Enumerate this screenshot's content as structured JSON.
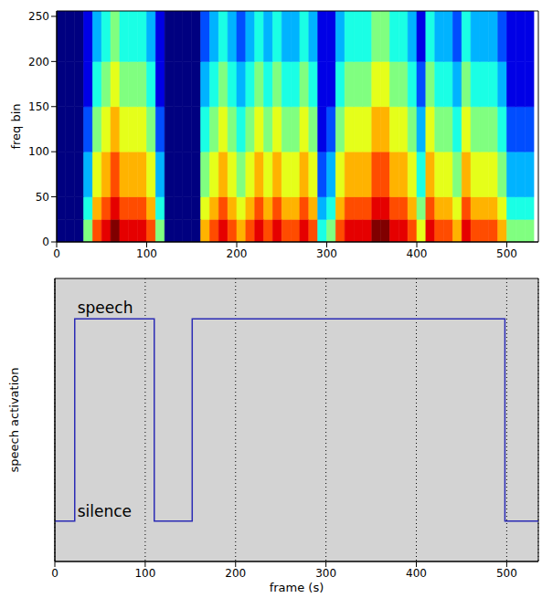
{
  "chart_data": [
    {
      "type": "heatmap",
      "y_label": "freq bin",
      "xlim": [
        0,
        535
      ],
      "xticks": [
        0,
        100,
        200,
        300,
        400,
        500
      ],
      "ylim": [
        0,
        256
      ],
      "yticks": [
        0,
        50,
        100,
        150,
        200,
        250
      ],
      "frame_edges": [
        0,
        10,
        20,
        30,
        40,
        50,
        60,
        70,
        80,
        90,
        100,
        110,
        120,
        130,
        140,
        150,
        160,
        170,
        180,
        190,
        200,
        210,
        220,
        230,
        240,
        250,
        260,
        270,
        280,
        290,
        300,
        310,
        320,
        330,
        340,
        350,
        360,
        370,
        380,
        390,
        400,
        410,
        420,
        430,
        440,
        450,
        460,
        470,
        480,
        490,
        500,
        510,
        520,
        530
      ],
      "freq_edges": [
        0,
        25,
        50,
        100,
        150,
        200,
        256
      ],
      "zlim": [
        0,
        10
      ],
      "cells": [
        [
          0,
          0,
          0,
          5,
          8,
          9,
          10,
          9,
          9,
          9,
          8,
          5,
          0,
          0,
          0,
          0,
          7,
          8,
          9,
          8,
          7,
          8,
          9,
          8,
          9,
          8,
          8,
          9,
          8,
          4,
          5,
          8,
          9,
          9,
          9,
          10,
          10,
          9,
          9,
          8,
          6,
          9,
          8,
          8,
          7,
          9,
          8,
          8,
          8,
          7,
          5,
          5,
          5
        ],
        [
          0,
          0,
          0,
          4,
          7,
          8,
          9,
          8,
          8,
          8,
          7,
          4,
          0,
          0,
          0,
          0,
          6,
          7,
          8,
          7,
          6,
          7,
          8,
          7,
          8,
          7,
          7,
          8,
          7,
          3,
          4,
          7,
          8,
          8,
          8,
          9,
          9,
          8,
          8,
          7,
          5,
          8,
          7,
          7,
          6,
          8,
          7,
          7,
          7,
          6,
          4,
          4,
          4
        ],
        [
          0,
          0,
          0,
          3,
          6,
          7,
          8,
          7,
          7,
          7,
          6,
          3,
          0,
          0,
          0,
          0,
          5,
          6,
          7,
          6,
          5,
          6,
          7,
          6,
          7,
          6,
          6,
          7,
          6,
          2,
          3,
          6,
          7,
          7,
          7,
          8,
          8,
          7,
          7,
          6,
          4,
          7,
          6,
          6,
          5,
          7,
          6,
          6,
          6,
          5,
          3,
          3,
          3
        ],
        [
          0,
          0,
          0,
          2,
          5,
          6,
          7,
          6,
          6,
          6,
          5,
          2,
          0,
          0,
          0,
          0,
          4,
          5,
          6,
          5,
          4,
          5,
          6,
          5,
          6,
          5,
          5,
          6,
          5,
          1,
          2,
          5,
          6,
          6,
          6,
          7,
          7,
          6,
          6,
          5,
          3,
          6,
          5,
          5,
          4,
          6,
          5,
          5,
          5,
          4,
          2,
          2,
          2
        ],
        [
          0,
          0,
          0,
          1,
          4,
          5,
          6,
          5,
          5,
          5,
          4,
          1,
          0,
          0,
          0,
          0,
          3,
          4,
          5,
          4,
          3,
          4,
          5,
          4,
          5,
          4,
          4,
          5,
          4,
          1,
          1,
          4,
          5,
          5,
          5,
          6,
          6,
          5,
          5,
          4,
          2,
          5,
          4,
          4,
          3,
          5,
          4,
          4,
          4,
          3,
          1,
          1,
          1
        ],
        [
          0,
          0,
          0,
          1,
          3,
          4,
          5,
          4,
          4,
          4,
          3,
          1,
          0,
          0,
          0,
          0,
          2,
          3,
          4,
          3,
          2,
          3,
          4,
          3,
          4,
          3,
          3,
          4,
          3,
          1,
          1,
          3,
          4,
          4,
          4,
          5,
          5,
          4,
          4,
          3,
          1,
          4,
          3,
          3,
          2,
          4,
          3,
          3,
          3,
          2,
          1,
          1,
          1
        ]
      ]
    },
    {
      "type": "line",
      "x_label": "frame (s)",
      "y_label": "speech activation",
      "x": [
        0,
        22,
        110,
        152,
        498,
        535
      ],
      "values": [
        0,
        1,
        0,
        1,
        0,
        0
      ],
      "line_style": "step",
      "color": "#2b2bb5",
      "xlim": [
        0,
        535
      ],
      "xticks": [
        0,
        100,
        200,
        300,
        400,
        500
      ],
      "ylim": [
        -0.2,
        1.2
      ],
      "tick_labels": "x",
      "grid": true,
      "annotations": [
        {
          "text": "speech",
          "x": 25,
          "y": 1.03
        },
        {
          "text": "silence",
          "x": 25,
          "y": 0.02
        }
      ]
    }
  ]
}
